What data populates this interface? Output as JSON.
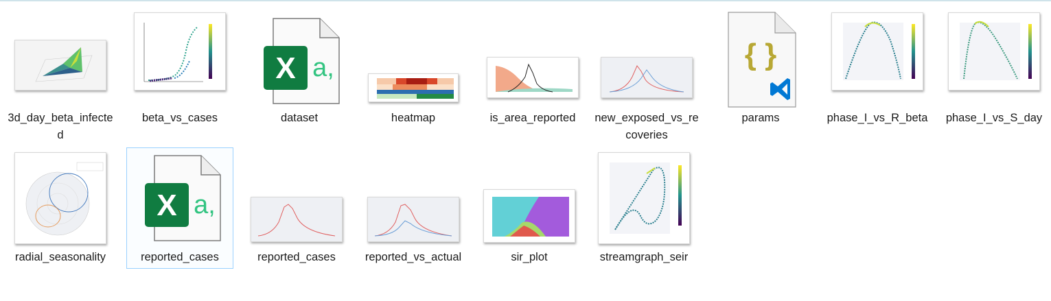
{
  "files": [
    {
      "name": "3d_day_beta_infected",
      "type": "png"
    },
    {
      "name": "beta_vs_cases",
      "type": "png"
    },
    {
      "name": "dataset",
      "type": "xlsx"
    },
    {
      "name": "heatmap",
      "type": "png"
    },
    {
      "name": "is_area_reported",
      "type": "png"
    },
    {
      "name": "new_exposed_vs_recoveries",
      "type": "png"
    },
    {
      "name": "params",
      "type": "json"
    },
    {
      "name": "phase_I_vs_R_beta",
      "type": "png"
    },
    {
      "name": "phase_I_vs_S_day",
      "type": "png"
    },
    {
      "name": "radial_seasonality",
      "type": "png"
    },
    {
      "name": "reported_cases",
      "type": "xlsx",
      "selected": true
    },
    {
      "name": "reported_cases",
      "type": "png"
    },
    {
      "name": "reported_vs_actual",
      "type": "png"
    },
    {
      "name": "sir_plot",
      "type": "png"
    },
    {
      "name": "streamgraph_seir",
      "type": "png"
    }
  ],
  "icons": {
    "xlsx": "excel-icon",
    "json": "vscode-json-icon"
  },
  "colors": {
    "excel_green": "#107c41",
    "json_brace": "#b8a835",
    "vscode_blue": "#0078d4",
    "selection": "#99d1ff"
  }
}
